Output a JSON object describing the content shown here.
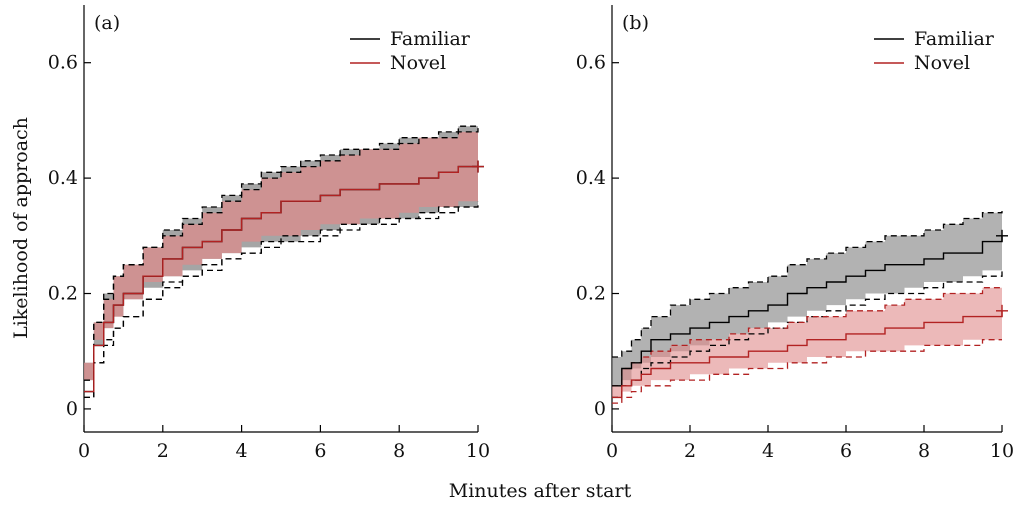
{
  "ylabel": "Likelihood of approach",
  "xlabel": "Minutes after start",
  "colors": {
    "familiar": "#000000",
    "novel": "#b22222",
    "familiar_band": "#7f7f7f",
    "novel_band": "#e08a8a"
  },
  "chart_data": [
    {
      "type": "line",
      "panel_label": "(a)",
      "xlim": [
        0,
        10
      ],
      "ylim": [
        -0.04,
        0.7
      ],
      "x_ticks": [
        0,
        2,
        4,
        6,
        8,
        10
      ],
      "y_ticks": [
        0,
        0.2,
        0.4,
        0.6
      ],
      "y_tick_labels": [
        "0",
        "0.2",
        "0.4",
        "0.6"
      ],
      "legend": "top-right",
      "series": [
        {
          "name": "Familiar",
          "x": [
            0,
            0.25,
            0.5,
            0.75,
            1,
            1.5,
            2,
            2.5,
            3,
            3.5,
            4,
            4.5,
            5,
            5.5,
            6,
            6.5,
            7,
            7.5,
            8,
            8.5,
            9,
            9.5,
            10
          ],
          "y": [
            0.03,
            0.11,
            0.15,
            0.18,
            0.2,
            0.23,
            0.26,
            0.28,
            0.29,
            0.31,
            0.33,
            0.34,
            0.36,
            0.36,
            0.37,
            0.38,
            0.38,
            0.39,
            0.39,
            0.4,
            0.41,
            0.42,
            0.42
          ],
          "lower": [
            0.02,
            0.08,
            0.11,
            0.14,
            0.16,
            0.19,
            0.21,
            0.23,
            0.24,
            0.26,
            0.27,
            0.28,
            0.29,
            0.29,
            0.3,
            0.31,
            0.32,
            0.32,
            0.33,
            0.33,
            0.34,
            0.35,
            0.35
          ],
          "upper": [
            0.05,
            0.15,
            0.2,
            0.23,
            0.25,
            0.28,
            0.31,
            0.33,
            0.35,
            0.37,
            0.39,
            0.41,
            0.42,
            0.43,
            0.44,
            0.45,
            0.45,
            0.46,
            0.47,
            0.47,
            0.48,
            0.49,
            0.49
          ]
        },
        {
          "name": "Novel",
          "x": [
            0,
            0.25,
            0.5,
            0.75,
            1,
            1.5,
            2,
            2.5,
            3,
            3.5,
            4,
            4.5,
            5,
            5.5,
            6,
            6.5,
            7,
            7.5,
            8,
            8.5,
            9,
            9.5,
            10
          ],
          "y": [
            0.03,
            0.11,
            0.15,
            0.18,
            0.2,
            0.23,
            0.26,
            0.28,
            0.29,
            0.31,
            0.33,
            0.34,
            0.36,
            0.36,
            0.37,
            0.38,
            0.38,
            0.39,
            0.39,
            0.4,
            0.41,
            0.42,
            0.42
          ],
          "lower": [
            0.02,
            0.08,
            0.12,
            0.14,
            0.16,
            0.19,
            0.22,
            0.23,
            0.25,
            0.26,
            0.27,
            0.29,
            0.3,
            0.3,
            0.31,
            0.32,
            0.32,
            0.33,
            0.33,
            0.34,
            0.35,
            0.35,
            0.36
          ],
          "upper": [
            0.05,
            0.15,
            0.19,
            0.23,
            0.25,
            0.28,
            0.3,
            0.32,
            0.34,
            0.36,
            0.38,
            0.4,
            0.41,
            0.42,
            0.43,
            0.44,
            0.45,
            0.45,
            0.46,
            0.47,
            0.47,
            0.48,
            0.49
          ]
        }
      ]
    },
    {
      "type": "line",
      "panel_label": "(b)",
      "xlim": [
        0,
        10
      ],
      "ylim": [
        -0.04,
        0.7
      ],
      "x_ticks": [
        0,
        2,
        4,
        6,
        8,
        10
      ],
      "y_ticks": [
        0,
        0.2,
        0.4,
        0.6
      ],
      "y_tick_labels": [
        "0",
        "0.2",
        "0.4",
        "0.6"
      ],
      "legend": "top-right",
      "series": [
        {
          "name": "Familiar",
          "x": [
            0,
            0.25,
            0.5,
            0.75,
            1,
            1.5,
            2,
            2.5,
            3,
            3.5,
            4,
            4.5,
            5,
            5.5,
            6,
            6.5,
            7,
            7.5,
            8,
            8.5,
            9,
            9.5,
            10
          ],
          "y": [
            0.04,
            0.07,
            0.08,
            0.1,
            0.12,
            0.13,
            0.14,
            0.15,
            0.16,
            0.17,
            0.18,
            0.2,
            0.21,
            0.22,
            0.23,
            0.24,
            0.25,
            0.25,
            0.26,
            0.27,
            0.27,
            0.29,
            0.3
          ],
          "lower": [
            0.02,
            0.04,
            0.05,
            0.07,
            0.08,
            0.09,
            0.1,
            0.11,
            0.12,
            0.13,
            0.14,
            0.15,
            0.16,
            0.17,
            0.18,
            0.19,
            0.2,
            0.2,
            0.21,
            0.22,
            0.22,
            0.23,
            0.24
          ],
          "upper": [
            0.09,
            0.1,
            0.12,
            0.14,
            0.16,
            0.18,
            0.19,
            0.2,
            0.21,
            0.22,
            0.23,
            0.25,
            0.26,
            0.27,
            0.28,
            0.29,
            0.3,
            0.3,
            0.31,
            0.32,
            0.33,
            0.34,
            0.35
          ]
        },
        {
          "name": "Novel",
          "x": [
            0,
            0.25,
            0.5,
            0.75,
            1,
            1.5,
            2,
            2.5,
            3,
            3.5,
            4,
            4.5,
            5,
            5.5,
            6,
            6.5,
            7,
            7.5,
            8,
            8.5,
            9,
            9.5,
            10
          ],
          "y": [
            0.02,
            0.04,
            0.05,
            0.06,
            0.07,
            0.08,
            0.08,
            0.09,
            0.09,
            0.1,
            0.1,
            0.11,
            0.12,
            0.12,
            0.13,
            0.13,
            0.14,
            0.14,
            0.15,
            0.15,
            0.16,
            0.16,
            0.17
          ],
          "lower": [
            0.01,
            0.02,
            0.03,
            0.04,
            0.04,
            0.05,
            0.05,
            0.06,
            0.06,
            0.07,
            0.07,
            0.08,
            0.08,
            0.09,
            0.09,
            0.1,
            0.1,
            0.1,
            0.11,
            0.11,
            0.11,
            0.12,
            0.12
          ],
          "upper": [
            0.04,
            0.07,
            0.08,
            0.09,
            0.1,
            0.11,
            0.12,
            0.12,
            0.13,
            0.14,
            0.14,
            0.15,
            0.16,
            0.16,
            0.17,
            0.17,
            0.18,
            0.19,
            0.19,
            0.2,
            0.2,
            0.21,
            0.21
          ]
        }
      ]
    }
  ]
}
